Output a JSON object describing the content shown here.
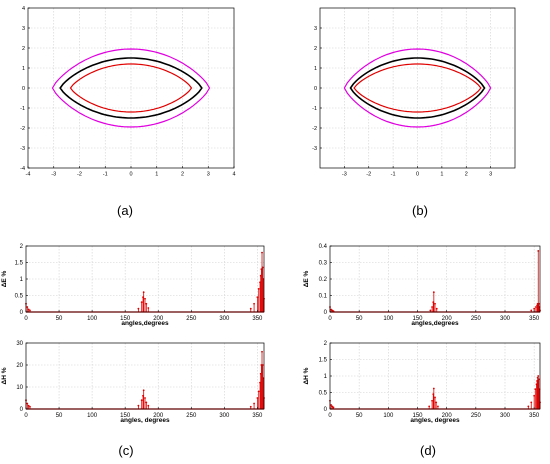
{
  "colors": {
    "curve_outer": "#e000e0",
    "curve_middle": "#000000",
    "curve_inner": "#e00000",
    "spikes": "#e00000",
    "axis": "#000000",
    "grid": "#d0d0d0"
  },
  "panel_labels": {
    "a": "(a)",
    "b": "(b)",
    "c": "(c)",
    "d": "(d)"
  },
  "chart_data": [
    {
      "id": "a",
      "type": "line",
      "title": "",
      "xlabel": "",
      "ylabel": "",
      "xlim": [
        -4,
        4
      ],
      "ylim": [
        -4,
        4
      ],
      "xticks": [
        -4,
        -3,
        -2,
        -1,
        0,
        1,
        2,
        3,
        4
      ],
      "yticks": [
        -4,
        -3,
        -2,
        -1,
        0,
        1,
        2,
        3,
        4
      ],
      "grid": true,
      "series": [
        {
          "color": "#e000e0",
          "shape": "lens",
          "x_extent": 3.05,
          "y_extent": 1.95,
          "notch": false
        },
        {
          "color": "#000000",
          "shape": "lens",
          "x_extent": 2.75,
          "y_extent": 1.5,
          "notch": false
        },
        {
          "color": "#e00000",
          "shape": "lens",
          "x_extent": 2.35,
          "y_extent": 1.2,
          "notch": false
        }
      ]
    },
    {
      "id": "b",
      "type": "line",
      "title": "",
      "xlabel": "",
      "ylabel": "",
      "xlim": [
        -4,
        4
      ],
      "ylim": [
        -4,
        4
      ],
      "xticks": [
        -3,
        -2,
        -1,
        0,
        1,
        2,
        3
      ],
      "yticks": [
        -3,
        -2,
        -1,
        0,
        1,
        2,
        3
      ],
      "grid": true,
      "series": [
        {
          "color": "#e000e0",
          "shape": "lens",
          "x_extent": 3.0,
          "y_extent": 1.95,
          "notch": true
        },
        {
          "color": "#000000",
          "shape": "lens",
          "x_extent": 2.75,
          "y_extent": 1.5,
          "notch": false
        },
        {
          "color": "#e00000",
          "shape": "lens",
          "x_extent": 2.6,
          "y_extent": 1.2,
          "notch": false
        }
      ]
    },
    {
      "id": "c-top",
      "type": "bar",
      "title": "",
      "xlabel": "angles,degrees",
      "ylabel": "ΔE %",
      "xlim": [
        0,
        360
      ],
      "ylim": [
        0,
        2
      ],
      "xticks": [
        0,
        50,
        100,
        150,
        200,
        250,
        300,
        350
      ],
      "yticks": [
        0,
        0.5,
        1,
        1.5,
        2
      ],
      "ytick_labels": [
        "0",
        "0.5",
        "1",
        "1.5",
        "2"
      ],
      "grid": true,
      "series": [
        {
          "color": "#e00000",
          "x": [
            0,
            2,
            4,
            6,
            170,
            175,
            177,
            178,
            180,
            182,
            185,
            340,
            345,
            350,
            352,
            354,
            355,
            356,
            357,
            358,
            359,
            360
          ],
          "values": [
            0.25,
            0.15,
            0.08,
            0.05,
            0.1,
            0.3,
            0.45,
            0.6,
            0.4,
            0.25,
            0.12,
            0.1,
            0.25,
            0.45,
            0.7,
            0.9,
            1.1,
            1.3,
            1.8,
            1.35,
            1.0,
            0.4
          ]
        }
      ]
    },
    {
      "id": "c-bottom",
      "type": "bar",
      "title": "",
      "xlabel": "angles, degrees",
      "ylabel": "ΔH %",
      "xlim": [
        0,
        360
      ],
      "ylim": [
        0,
        30
      ],
      "xticks": [
        0,
        50,
        100,
        150,
        200,
        250,
        300,
        350
      ],
      "yticks": [
        0,
        10,
        20,
        30
      ],
      "ytick_labels": [
        "0",
        "10",
        "20",
        "30"
      ],
      "grid": true,
      "series": [
        {
          "color": "#e00000",
          "x": [
            0,
            2,
            4,
            6,
            170,
            175,
            177,
            178,
            180,
            182,
            185,
            340,
            345,
            350,
            352,
            354,
            355,
            356,
            357,
            358,
            359,
            360
          ],
          "values": [
            4,
            2.5,
            1.5,
            1,
            1.5,
            4,
            6,
            8.5,
            5,
            3,
            1.5,
            1,
            2.5,
            5,
            8,
            12,
            16,
            20,
            26,
            20,
            14,
            5
          ]
        }
      ]
    },
    {
      "id": "d-top",
      "type": "bar",
      "title": "",
      "xlabel": "angles,degrees",
      "ylabel": "ΔE %",
      "xlim": [
        0,
        360
      ],
      "ylim": [
        0,
        0.4
      ],
      "xticks": [
        0,
        50,
        100,
        150,
        200,
        250,
        300,
        350
      ],
      "yticks": [
        0,
        0.1,
        0.2,
        0.3,
        0.4
      ],
      "ytick_labels": [
        "0",
        "0.1",
        "0.2",
        "0.3",
        "0.4"
      ],
      "grid": true,
      "series": [
        {
          "color": "#e00000",
          "x": [
            0,
            2,
            4,
            6,
            172,
            175,
            177,
            178,
            180,
            183,
            345,
            350,
            353,
            355,
            356,
            357,
            358,
            359,
            360
          ],
          "values": [
            0.03,
            0.015,
            0.01,
            0.005,
            0.01,
            0.03,
            0.06,
            0.12,
            0.05,
            0.02,
            0.01,
            0.02,
            0.03,
            0.04,
            0.05,
            0.37,
            0.05,
            0.03,
            0.01
          ]
        }
      ]
    },
    {
      "id": "d-bottom",
      "type": "bar",
      "title": "",
      "xlabel": "angles, degrees",
      "ylabel": "ΔH %",
      "xlim": [
        0,
        360
      ],
      "ylim": [
        0,
        2
      ],
      "xticks": [
        0,
        50,
        100,
        150,
        200,
        250,
        300,
        350
      ],
      "yticks": [
        0,
        0.5,
        1,
        1.5,
        2
      ],
      "ytick_labels": [
        "0",
        "0.5",
        "1",
        "1.5",
        "2"
      ],
      "grid": true,
      "series": [
        {
          "color": "#e00000",
          "x": [
            0,
            2,
            4,
            6,
            170,
            175,
            177,
            178,
            180,
            182,
            185,
            340,
            345,
            350,
            352,
            354,
            355,
            356,
            357,
            358,
            359,
            360
          ],
          "values": [
            0.25,
            0.12,
            0.08,
            0.05,
            0.08,
            0.25,
            0.45,
            0.62,
            0.35,
            0.2,
            0.08,
            0.08,
            0.2,
            0.4,
            0.6,
            0.75,
            0.85,
            0.95,
            1.0,
            0.9,
            0.6,
            0.2
          ]
        }
      ]
    }
  ]
}
